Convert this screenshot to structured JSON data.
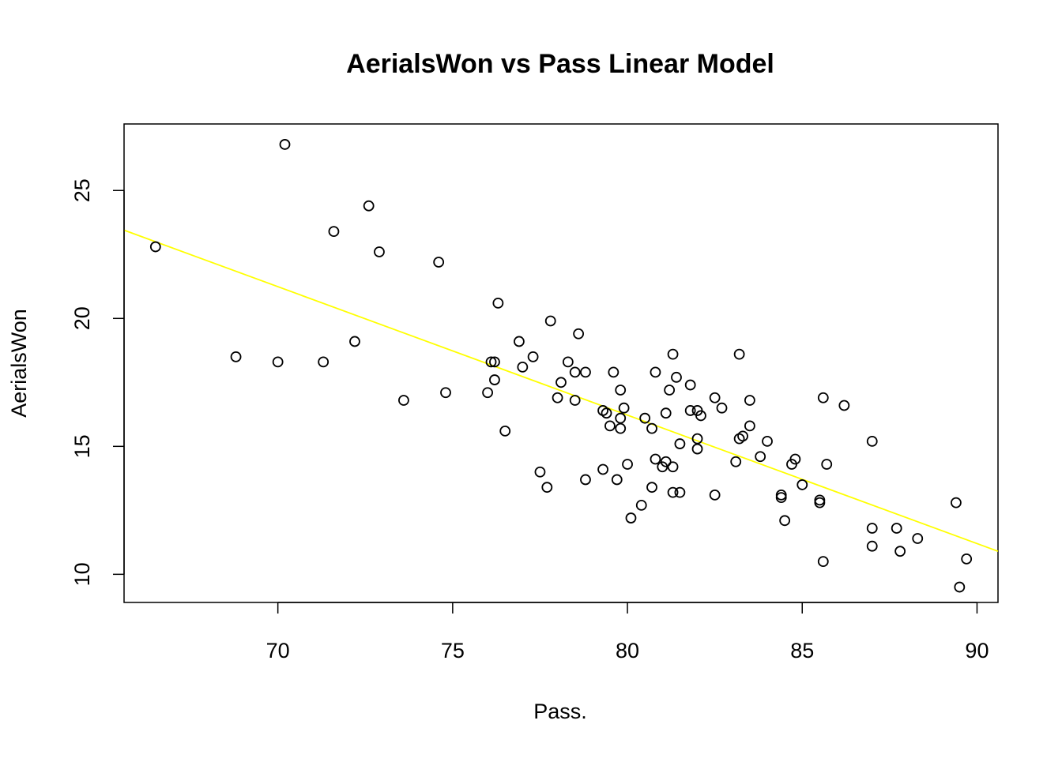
{
  "chart_data": {
    "type": "scatter",
    "title": "AerialsWon vs Pass Linear Model",
    "xlabel": "Pass.",
    "ylabel": "AerialsWon",
    "xlim": [
      65.6,
      90.6
    ],
    "ylim": [
      8.9,
      27.6
    ],
    "xticks": [
      70,
      75,
      80,
      85,
      90
    ],
    "yticks": [
      10,
      15,
      20,
      25
    ],
    "grid": false,
    "fit_color": "#ffff00",
    "point_color": "#000000",
    "regression_line": {
      "x": [
        65.6,
        90.6
      ],
      "y": [
        23.45,
        10.9
      ]
    },
    "points": [
      {
        "x": 66.5,
        "y": 22.8
      },
      {
        "x": 68.8,
        "y": 18.5
      },
      {
        "x": 70.0,
        "y": 18.3
      },
      {
        "x": 70.2,
        "y": 26.8
      },
      {
        "x": 71.3,
        "y": 18.3
      },
      {
        "x": 71.6,
        "y": 23.4
      },
      {
        "x": 72.2,
        "y": 19.1
      },
      {
        "x": 72.6,
        "y": 24.4
      },
      {
        "x": 72.9,
        "y": 22.6
      },
      {
        "x": 73.6,
        "y": 16.8
      },
      {
        "x": 74.6,
        "y": 22.2
      },
      {
        "x": 74.8,
        "y": 17.1
      },
      {
        "x": 76.0,
        "y": 17.1
      },
      {
        "x": 76.1,
        "y": 18.3
      },
      {
        "x": 76.2,
        "y": 18.3
      },
      {
        "x": 76.2,
        "y": 17.6
      },
      {
        "x": 76.3,
        "y": 20.6
      },
      {
        "x": 76.5,
        "y": 15.6
      },
      {
        "x": 76.9,
        "y": 19.1
      },
      {
        "x": 77.0,
        "y": 18.1
      },
      {
        "x": 77.3,
        "y": 18.5
      },
      {
        "x": 77.5,
        "y": 14.0
      },
      {
        "x": 77.7,
        "y": 13.4
      },
      {
        "x": 77.8,
        "y": 19.9
      },
      {
        "x": 78.0,
        "y": 16.9
      },
      {
        "x": 78.1,
        "y": 17.5
      },
      {
        "x": 78.3,
        "y": 18.3
      },
      {
        "x": 78.5,
        "y": 17.9
      },
      {
        "x": 78.5,
        "y": 16.8
      },
      {
        "x": 78.6,
        "y": 19.4
      },
      {
        "x": 78.8,
        "y": 17.9
      },
      {
        "x": 78.8,
        "y": 13.7
      },
      {
        "x": 79.3,
        "y": 14.1
      },
      {
        "x": 79.3,
        "y": 16.4
      },
      {
        "x": 79.4,
        "y": 16.3
      },
      {
        "x": 79.5,
        "y": 15.8
      },
      {
        "x": 79.6,
        "y": 17.9
      },
      {
        "x": 79.7,
        "y": 13.7
      },
      {
        "x": 79.8,
        "y": 17.2
      },
      {
        "x": 79.8,
        "y": 16.1
      },
      {
        "x": 79.8,
        "y": 15.7
      },
      {
        "x": 79.9,
        "y": 16.5
      },
      {
        "x": 80.0,
        "y": 14.3
      },
      {
        "x": 80.1,
        "y": 12.2
      },
      {
        "x": 80.4,
        "y": 12.7
      },
      {
        "x": 80.5,
        "y": 16.1
      },
      {
        "x": 80.7,
        "y": 15.7
      },
      {
        "x": 80.7,
        "y": 13.4
      },
      {
        "x": 80.8,
        "y": 17.9
      },
      {
        "x": 80.8,
        "y": 14.5
      },
      {
        "x": 81.0,
        "y": 14.2
      },
      {
        "x": 81.1,
        "y": 16.3
      },
      {
        "x": 81.1,
        "y": 14.4
      },
      {
        "x": 81.2,
        "y": 17.2
      },
      {
        "x": 81.3,
        "y": 18.6
      },
      {
        "x": 81.3,
        "y": 14.2
      },
      {
        "x": 81.3,
        "y": 13.2
      },
      {
        "x": 81.4,
        "y": 17.7
      },
      {
        "x": 81.5,
        "y": 15.1
      },
      {
        "x": 81.5,
        "y": 13.2
      },
      {
        "x": 81.8,
        "y": 17.4
      },
      {
        "x": 81.8,
        "y": 16.4
      },
      {
        "x": 82.0,
        "y": 16.4
      },
      {
        "x": 82.0,
        "y": 15.3
      },
      {
        "x": 82.0,
        "y": 14.9
      },
      {
        "x": 82.1,
        "y": 16.2
      },
      {
        "x": 82.5,
        "y": 16.9
      },
      {
        "x": 82.5,
        "y": 13.1
      },
      {
        "x": 82.7,
        "y": 16.5
      },
      {
        "x": 83.1,
        "y": 14.4
      },
      {
        "x": 83.2,
        "y": 18.6
      },
      {
        "x": 83.2,
        "y": 15.3
      },
      {
        "x": 83.3,
        "y": 15.4
      },
      {
        "x": 83.5,
        "y": 16.8
      },
      {
        "x": 83.5,
        "y": 15.8
      },
      {
        "x": 83.8,
        "y": 14.6
      },
      {
        "x": 84.0,
        "y": 15.2
      },
      {
        "x": 84.4,
        "y": 13.1
      },
      {
        "x": 84.4,
        "y": 13.0
      },
      {
        "x": 84.5,
        "y": 12.1
      },
      {
        "x": 84.7,
        "y": 14.3
      },
      {
        "x": 84.8,
        "y": 14.5
      },
      {
        "x": 85.0,
        "y": 13.5
      },
      {
        "x": 85.5,
        "y": 12.9
      },
      {
        "x": 85.5,
        "y": 12.8
      },
      {
        "x": 85.6,
        "y": 16.9
      },
      {
        "x": 85.6,
        "y": 10.5
      },
      {
        "x": 85.7,
        "y": 14.3
      },
      {
        "x": 86.2,
        "y": 16.6
      },
      {
        "x": 87.0,
        "y": 15.2
      },
      {
        "x": 87.0,
        "y": 11.8
      },
      {
        "x": 87.0,
        "y": 11.1
      },
      {
        "x": 87.7,
        "y": 11.8
      },
      {
        "x": 87.8,
        "y": 10.9
      },
      {
        "x": 88.3,
        "y": 11.4
      },
      {
        "x": 89.4,
        "y": 12.8
      },
      {
        "x": 89.5,
        "y": 9.5
      },
      {
        "x": 89.7,
        "y": 10.6
      }
    ]
  }
}
